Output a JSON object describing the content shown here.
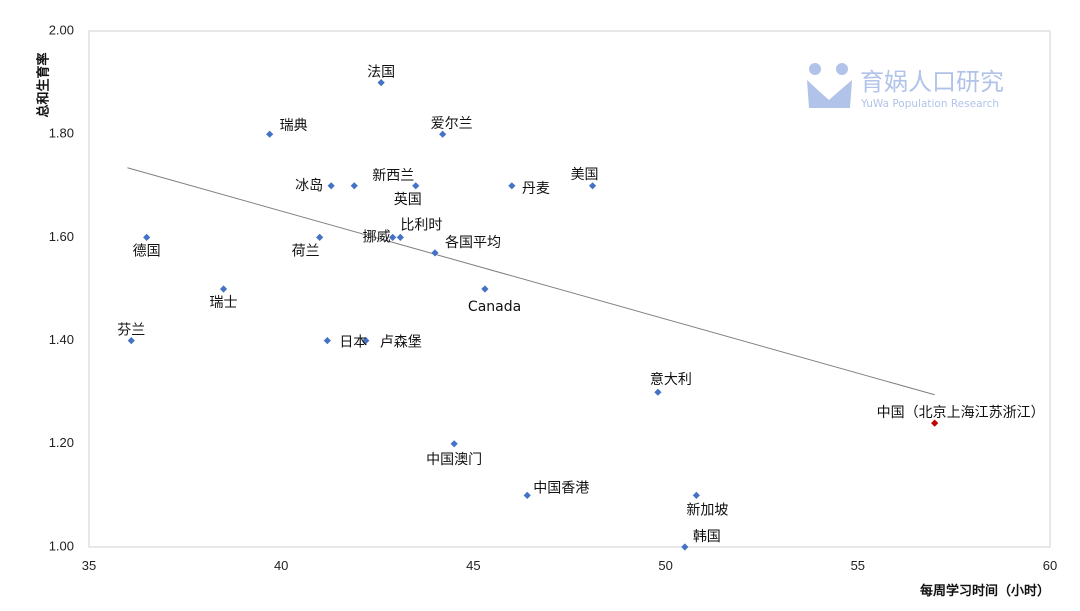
{
  "chart_data": {
    "type": "scatter",
    "xlabel": "每周学习时间（小时）",
    "ylabel": "总和生育率",
    "xlim": [
      35,
      60
    ],
    "ylim": [
      1.0,
      2.0
    ],
    "x_ticks": [
      "35",
      "40",
      "45",
      "50",
      "55",
      "60"
    ],
    "y_ticks": [
      "1.00",
      "1.20",
      "1.40",
      "1.60",
      "1.80",
      "2.00"
    ],
    "points": [
      {
        "label": "法国",
        "x": 42.6,
        "y": 1.9
      },
      {
        "label": "瑞典",
        "x": 39.7,
        "y": 1.8
      },
      {
        "label": "爱尔兰",
        "x": 44.2,
        "y": 1.8
      },
      {
        "label": "冰岛",
        "x": 41.3,
        "y": 1.7
      },
      {
        "label": "新西兰",
        "x": 41.9,
        "y": 1.7
      },
      {
        "label": "英国",
        "x": 43.5,
        "y": 1.7
      },
      {
        "label": "丹麦",
        "x": 46.0,
        "y": 1.7
      },
      {
        "label": "美国",
        "x": 48.1,
        "y": 1.7
      },
      {
        "label": "德国",
        "x": 36.5,
        "y": 1.6
      },
      {
        "label": "荷兰",
        "x": 41.0,
        "y": 1.6
      },
      {
        "label": "挪威",
        "x": 42.9,
        "y": 1.6
      },
      {
        "label": "比利时",
        "x": 43.1,
        "y": 1.6
      },
      {
        "label": "各国平均",
        "x": 44.0,
        "y": 1.57
      },
      {
        "label": "瑞士",
        "x": 38.5,
        "y": 1.5
      },
      {
        "label": "Canada",
        "x": 45.3,
        "y": 1.5
      },
      {
        "label": "芬兰",
        "x": 36.1,
        "y": 1.4
      },
      {
        "label": "日本",
        "x": 41.2,
        "y": 1.4
      },
      {
        "label": "卢森堡",
        "x": 42.2,
        "y": 1.4
      },
      {
        "label": "意大利",
        "x": 49.8,
        "y": 1.3
      },
      {
        "label": "中国（北京上海江苏浙江）",
        "x": 57.0,
        "y": 1.24,
        "color": "#c00000"
      },
      {
        "label": "中国澳门",
        "x": 44.5,
        "y": 1.2
      },
      {
        "label": "中国香港",
        "x": 46.4,
        "y": 1.1
      },
      {
        "label": "新加坡",
        "x": 50.8,
        "y": 1.1
      },
      {
        "label": "韩国",
        "x": 50.5,
        "y": 1.0
      }
    ],
    "trendline": {
      "x": [
        36.0,
        57.0
      ],
      "y": [
        1.735,
        1.295
      ]
    },
    "marker_color": "#4472c4",
    "trend_color": "#808080",
    "grid": false
  },
  "watermark": {
    "name": "育娲人口研究",
    "subtitle": "YuWa Population Research",
    "color": "#a9bde6"
  }
}
